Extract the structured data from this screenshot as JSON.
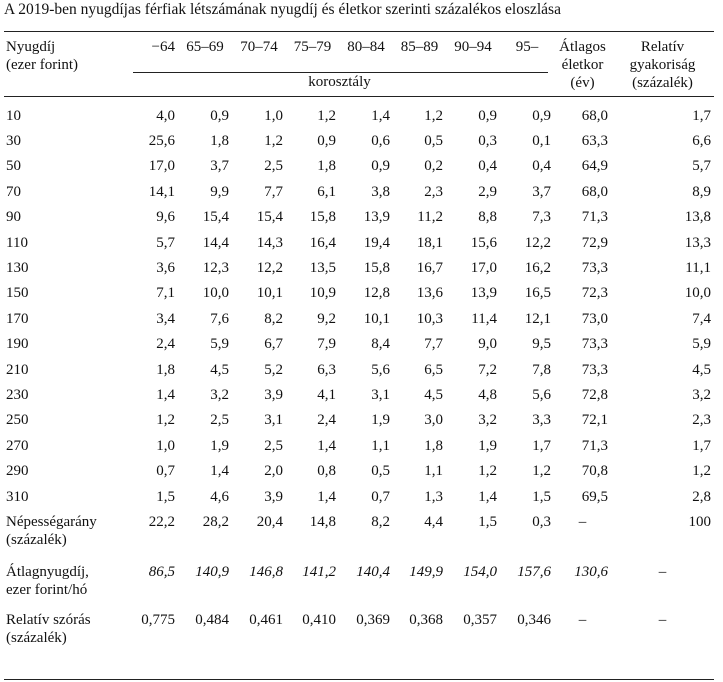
{
  "title": "A 2019-ben nyugdíjas férfiak létszámának nyugdíj és életkor szerinti százalékos eloszlása",
  "header": {
    "first_col_line1": "Nyugdíj",
    "first_col_line2": "(ezer forint)",
    "age_groups": [
      "−64",
      "65–69",
      "70–74",
      "75–79",
      "80–84",
      "85–89",
      "90–94",
      "95–"
    ],
    "age_group_label": "korosztály",
    "avg_age_line1": "Átlagos",
    "avg_age_line2": "életkor",
    "avg_age_line3": "(év)",
    "rel_freq_line1": "Relatív",
    "rel_freq_line2": "gyakoriság",
    "rel_freq_line3": "(százalék)"
  },
  "rows": [
    {
      "label": "10",
      "values": [
        "4,0",
        "0,9",
        "1,0",
        "1,2",
        "1,4",
        "1,2",
        "0,9",
        "0,9"
      ],
      "avg_age": "68,0",
      "rel_freq": "1,7"
    },
    {
      "label": "30",
      "values": [
        "25,6",
        "1,8",
        "1,2",
        "0,9",
        "0,6",
        "0,5",
        "0,3",
        "0,1"
      ],
      "avg_age": "63,3",
      "rel_freq": "6,6"
    },
    {
      "label": "50",
      "values": [
        "17,0",
        "3,7",
        "2,5",
        "1,8",
        "0,9",
        "0,2",
        "0,4",
        "0,4"
      ],
      "avg_age": "64,9",
      "rel_freq": "5,7"
    },
    {
      "label": "70",
      "values": [
        "14,1",
        "9,9",
        "7,7",
        "6,1",
        "3,8",
        "2,3",
        "2,9",
        "3,7"
      ],
      "avg_age": "68,0",
      "rel_freq": "8,9"
    },
    {
      "label": "90",
      "values": [
        "9,6",
        "15,4",
        "15,4",
        "15,8",
        "13,9",
        "11,2",
        "8,8",
        "7,3"
      ],
      "avg_age": "71,3",
      "rel_freq": "13,8"
    },
    {
      "label": "110",
      "values": [
        "5,7",
        "14,4",
        "14,3",
        "16,4",
        "19,4",
        "18,1",
        "15,6",
        "12,2"
      ],
      "avg_age": "72,9",
      "rel_freq": "13,3"
    },
    {
      "label": "130",
      "values": [
        "3,6",
        "12,3",
        "12,2",
        "13,5",
        "15,8",
        "16,7",
        "17,0",
        "16,2"
      ],
      "avg_age": "73,3",
      "rel_freq": "11,1"
    },
    {
      "label": "150",
      "values": [
        "7,1",
        "10,0",
        "10,1",
        "10,9",
        "12,8",
        "13,6",
        "13,9",
        "16,5"
      ],
      "avg_age": "72,3",
      "rel_freq": "10,0"
    },
    {
      "label": "170",
      "values": [
        "3,4",
        "7,6",
        "8,2",
        "9,2",
        "10,1",
        "10,3",
        "11,4",
        "12,1"
      ],
      "avg_age": "73,0",
      "rel_freq": "7,4"
    },
    {
      "label": "190",
      "values": [
        "2,4",
        "5,9",
        "6,7",
        "7,9",
        "8,4",
        "7,7",
        "9,0",
        "9,5"
      ],
      "avg_age": "73,3",
      "rel_freq": "5,9"
    },
    {
      "label": "210",
      "values": [
        "1,8",
        "4,5",
        "5,2",
        "6,3",
        "5,6",
        "6,5",
        "7,2",
        "7,8"
      ],
      "avg_age": "73,3",
      "rel_freq": "4,5"
    },
    {
      "label": "230",
      "values": [
        "1,4",
        "3,2",
        "3,9",
        "4,1",
        "3,1",
        "4,5",
        "4,8",
        "5,6"
      ],
      "avg_age": "72,8",
      "rel_freq": "3,2"
    },
    {
      "label": "250",
      "values": [
        "1,2",
        "2,5",
        "3,1",
        "2,4",
        "1,9",
        "3,0",
        "3,2",
        "3,3"
      ],
      "avg_age": "72,1",
      "rel_freq": "2,3"
    },
    {
      "label": "270",
      "values": [
        "1,0",
        "1,9",
        "2,5",
        "1,4",
        "1,1",
        "1,8",
        "1,9",
        "1,7"
      ],
      "avg_age": "71,3",
      "rel_freq": "1,7"
    },
    {
      "label": "290",
      "values": [
        "0,7",
        "1,4",
        "2,0",
        "0,8",
        "0,5",
        "1,1",
        "1,2",
        "1,2"
      ],
      "avg_age": "70,8",
      "rel_freq": "1,2"
    },
    {
      "label": "310",
      "values": [
        "1,5",
        "4,6",
        "3,9",
        "1,4",
        "0,7",
        "1,3",
        "1,4",
        "1,5"
      ],
      "avg_age": "69,5",
      "rel_freq": "2,8"
    }
  ],
  "footer_rows": {
    "population": {
      "label_line1": "Népességarány",
      "label_line2": "(százalék)",
      "values": [
        "22,2",
        "28,2",
        "20,4",
        "14,8",
        "8,2",
        "4,4",
        "1,5",
        "0,3"
      ],
      "avg_age": "–",
      "rel_freq": "100"
    },
    "avg_pension": {
      "label_line1": "Átlagnyugdíj,",
      "label_line2": "ezer forint/hó",
      "values": [
        "86,5",
        "140,9",
        "146,8",
        "141,2",
        "140,4",
        "149,9",
        "154,0",
        "157,6"
      ],
      "avg_age": "130,6",
      "rel_freq": "–"
    },
    "rel_std": {
      "label_line1": "Relatív szórás",
      "label_line2": "(százalék)",
      "values": [
        "0,775",
        "0,484",
        "0,461",
        "0,410",
        "0,369",
        "0,368",
        "0,357",
        "0,346"
      ],
      "avg_age": "–",
      "rel_freq": "–"
    }
  }
}
